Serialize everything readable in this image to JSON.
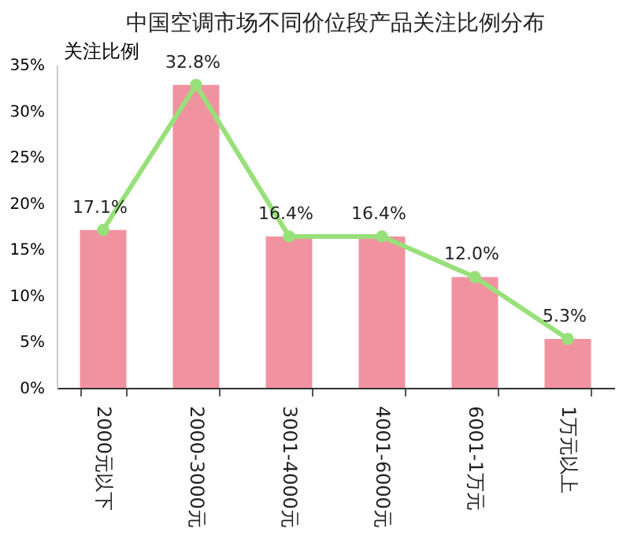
{
  "chart_data": {
    "type": "bar",
    "title": "中国空调市场不同价位段产品关注比例分布",
    "ylabel": "关注比例",
    "categories": [
      "2000元以下",
      "2000-3000元",
      "3001-4000元",
      "4001-6000元",
      "6001-1万元",
      "1万元以上"
    ],
    "series": [
      {
        "color": "#f08c9c",
        "values": [
          17.1,
          32.8,
          16.4,
          16.4,
          12.0,
          5.3
        ]
      },
      {
        "type": "line",
        "color": "#98e07a",
        "marker": "circle",
        "values": [
          17.1,
          32.8,
          16.4,
          16.4,
          12.0,
          5.3
        ],
        "value_labels": [
          "17.1%",
          "32.8%",
          "16.4%",
          "16.4%",
          "12.0%",
          "5.3%"
        ]
      }
    ],
    "ylim": [
      0,
      35
    ],
    "yticks": [
      {
        "value": 0,
        "label": "0%"
      },
      {
        "value": 5,
        "label": "5%"
      },
      {
        "value": 10,
        "label": "10%"
      },
      {
        "value": 15,
        "label": "15%"
      },
      {
        "value": 20,
        "label": "20%"
      },
      {
        "value": 25,
        "label": "25%"
      },
      {
        "value": 30,
        "label": "30%"
      },
      {
        "value": 35,
        "label": "35%"
      }
    ],
    "grid": false
  }
}
